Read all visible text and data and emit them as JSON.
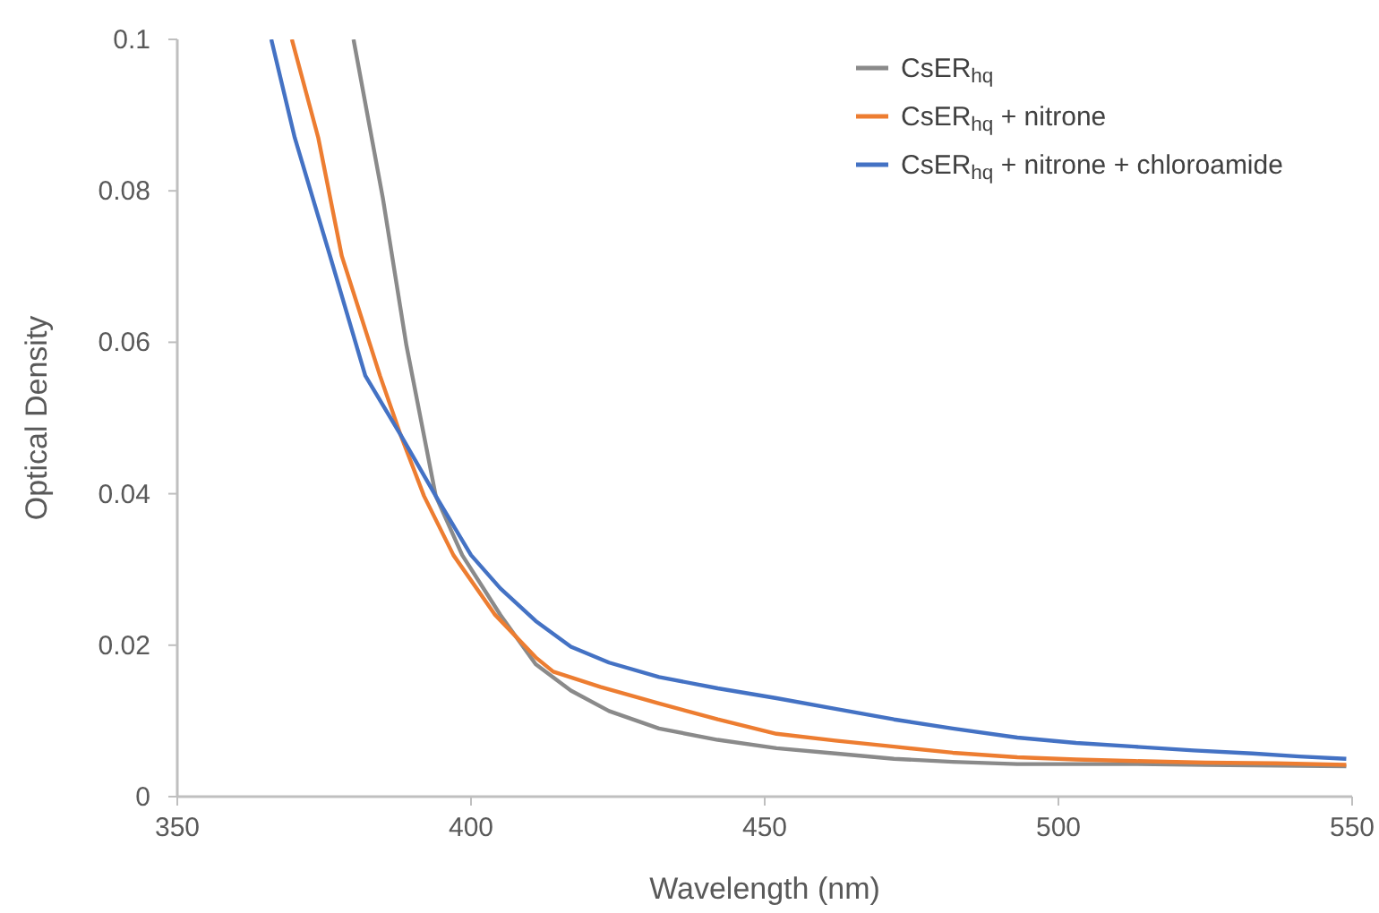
{
  "chart_data": {
    "type": "line",
    "xlabel": "Wavelength (nm)",
    "ylabel": "Optical Density",
    "xlim": [
      350,
      550
    ],
    "ylim": [
      0,
      0.1
    ],
    "xticks": [
      350,
      400,
      450,
      500,
      550
    ],
    "yticks": [
      0,
      0.02,
      0.04,
      0.06,
      0.08,
      0.1
    ],
    "grid": false,
    "legend": "top right",
    "line_style": "solid",
    "marker": "none",
    "series": [
      {
        "name": "CsER$_{hq}$",
        "color": "#8a8a8a",
        "x": [
          380,
          385,
          389,
          394,
          398.5,
          405,
          411,
          417,
          423.5,
          432,
          442,
          452,
          462,
          472,
          482,
          493,
          503,
          513,
          525,
          537,
          549
        ],
        "values": [
          0.1,
          0.079,
          0.0596,
          0.0397,
          0.0319,
          0.024,
          0.0175,
          0.014,
          0.0113,
          0.009,
          0.0075,
          0.0064,
          0.0057,
          0.005,
          0.0046,
          0.0043,
          0.0043,
          0.0043,
          0.0042,
          0.0041,
          0.004
        ]
      },
      {
        "name": "CsER$_{hq}$ + nitrone",
        "color": "#ed7d31",
        "x": [
          369.5,
          374,
          378,
          384.5,
          388,
          392,
          397,
          404,
          411,
          414,
          422,
          432,
          442,
          452,
          462,
          472,
          482,
          493,
          503,
          513,
          525,
          537,
          549
        ],
        "values": [
          0.1,
          0.087,
          0.0714,
          0.0556,
          0.0478,
          0.0397,
          0.0319,
          0.0241,
          0.0184,
          0.0165,
          0.0145,
          0.0123,
          0.0102,
          0.0083,
          0.0074,
          0.0066,
          0.0058,
          0.0052,
          0.0049,
          0.0047,
          0.0045,
          0.0044,
          0.0042
        ]
      },
      {
        "name": "CsER$_{hq}$ + nitrone + chloroamide",
        "color": "#4472c4",
        "x": [
          366,
          370,
          376,
          382,
          388,
          394,
          400,
          405,
          411,
          417,
          423.5,
          432,
          442,
          452,
          462,
          472,
          482,
          493,
          503,
          513,
          523,
          533,
          541,
          549
        ],
        "values": [
          0.1,
          0.087,
          0.0714,
          0.0556,
          0.0478,
          0.0397,
          0.0319,
          0.0275,
          0.0232,
          0.0198,
          0.0177,
          0.0158,
          0.0143,
          0.013,
          0.0116,
          0.0102,
          0.009,
          0.0078,
          0.0071,
          0.0066,
          0.0061,
          0.0057,
          0.0053,
          0.005
        ]
      }
    ]
  }
}
